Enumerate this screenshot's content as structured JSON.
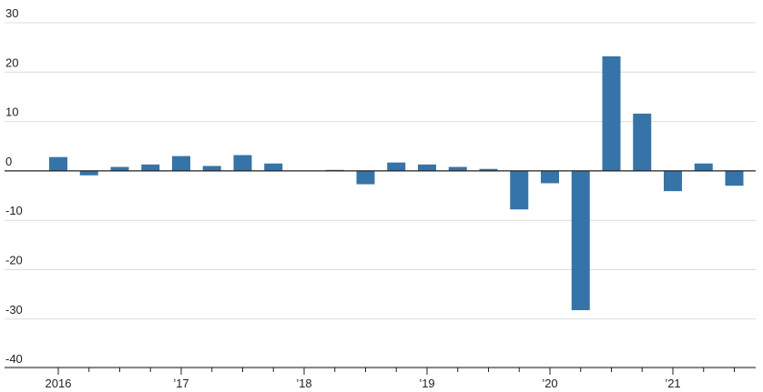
{
  "chart_data": {
    "type": "bar",
    "title": "",
    "xlabel": "",
    "ylabel": "",
    "ylim": [
      -40,
      30
    ],
    "y_ticks": [
      30,
      20,
      10,
      0,
      -10,
      -20,
      -30,
      -40
    ],
    "y_tick_labels": [
      "30",
      "20",
      "10",
      "0",
      "-10",
      "-20",
      "-30",
      "-40"
    ],
    "grid": true,
    "categories": [
      "2016 Q1",
      "2016 Q2",
      "2016 Q3",
      "2016 Q4",
      "2017 Q1",
      "2017 Q2",
      "2017 Q3",
      "2017 Q4",
      "2018 Q1",
      "2018 Q2",
      "2018 Q3",
      "2018 Q4",
      "2019 Q1",
      "2019 Q2",
      "2019 Q3",
      "2019 Q4",
      "2020 Q1",
      "2020 Q2",
      "2020 Q3",
      "2020 Q4",
      "2021 Q1",
      "2021 Q2",
      "2021 Q3"
    ],
    "values": [
      2.8,
      -0.9,
      0.8,
      1.3,
      3.0,
      1.0,
      3.2,
      1.5,
      0.0,
      0.2,
      -2.7,
      1.7,
      1.3,
      0.8,
      0.4,
      -7.8,
      -2.5,
      -28.2,
      23.2,
      11.6,
      -4.1,
      1.5,
      -3.0
    ],
    "year_labels": [
      {
        "label": "2016",
        "index": 0
      },
      {
        "label": "’17",
        "index": 4
      },
      {
        "label": "’18",
        "index": 8
      },
      {
        "label": "’19",
        "index": 12
      },
      {
        "label": "’20",
        "index": 16
      },
      {
        "label": "’21",
        "index": 20
      }
    ],
    "colors": {
      "bar": "#3574a8",
      "grid": "#dcdcdc",
      "axis": "#222222"
    }
  }
}
